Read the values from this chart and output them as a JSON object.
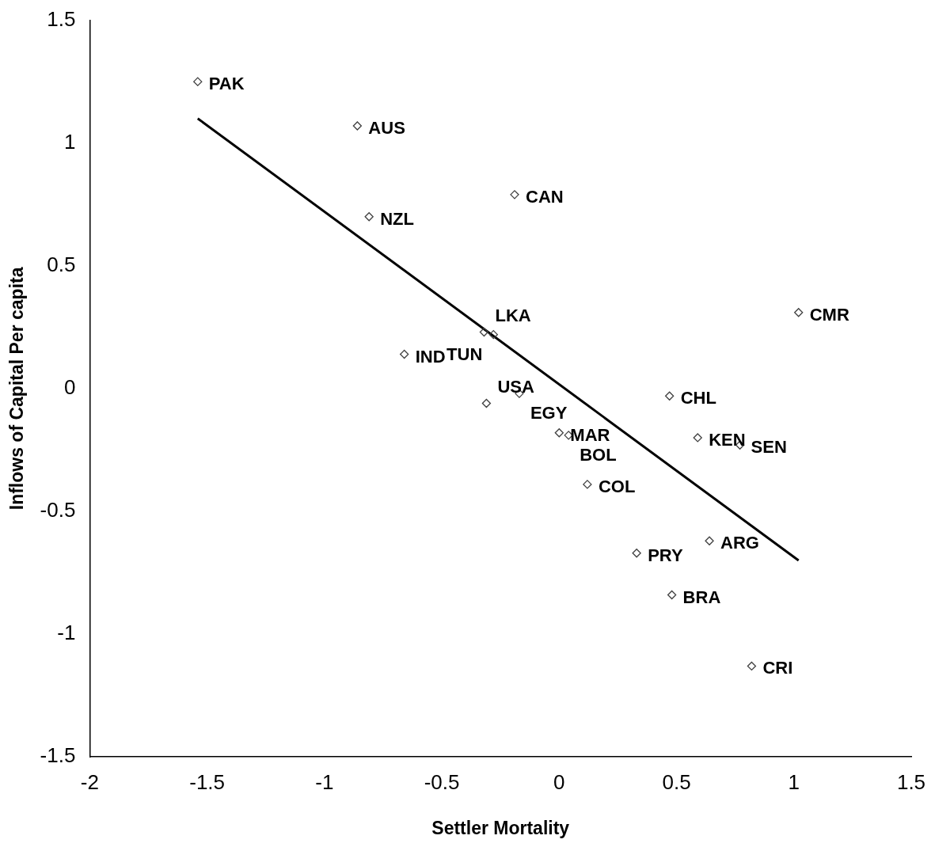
{
  "chart_data": {
    "type": "scatter",
    "xlabel": "Settler Mortality",
    "ylabel": "Inflows of Capital Per capita",
    "xlim": [
      -2,
      1.5
    ],
    "xticks": [
      -2,
      -1.5,
      -1,
      -0.5,
      0,
      0.5,
      1,
      1.5
    ],
    "ylim": [
      -1.5,
      1.5
    ],
    "yticks": [
      -1.5,
      -1,
      -0.5,
      0,
      0.5,
      1,
      1.5
    ],
    "grid": false,
    "legend": false,
    "marker": "diamond",
    "series": [
      {
        "type": "scatter",
        "color": "#404040",
        "x": [
          -1.54,
          -0.86,
          -0.19,
          -0.81,
          -0.32,
          -0.28,
          -0.66,
          -0.17,
          -0.31,
          0.0,
          0.04,
          0.12,
          1.02,
          0.47,
          0.59,
          0.77,
          0.64,
          0.33,
          0.48,
          0.82
        ],
        "values": [
          1.25,
          1.07,
          0.79,
          0.7,
          0.23,
          0.22,
          0.14,
          -0.02,
          -0.06,
          -0.18,
          -0.19,
          -0.39,
          0.31,
          -0.03,
          -0.2,
          -0.23,
          -0.62,
          -0.67,
          -0.84,
          -1.13
        ]
      },
      {
        "type": "line",
        "color": "#000000",
        "line_style": "solid",
        "marker": "none",
        "x": [
          -1.54,
          1.02
        ],
        "values": [
          1.1,
          -0.7
        ]
      }
    ],
    "annotations": [
      {
        "text": "PAK",
        "x": -1.54,
        "y": 1.25
      },
      {
        "text": "AUS",
        "x": -0.86,
        "y": 1.07
      },
      {
        "text": "CAN",
        "x": -0.19,
        "y": 0.79
      },
      {
        "text": "NZL",
        "x": -0.81,
        "y": 0.7
      },
      {
        "text": "LKA",
        "x": -0.32,
        "y": 0.23
      },
      {
        "text": "TUN",
        "x": -0.28,
        "y": 0.22
      },
      {
        "text": "IND",
        "x": -0.66,
        "y": 0.14
      },
      {
        "text": "EGY",
        "x": -0.17,
        "y": -0.02
      },
      {
        "text": "USA",
        "x": -0.31,
        "y": -0.06
      },
      {
        "text": "MAR",
        "x": 0.0,
        "y": -0.18
      },
      {
        "text": "BOL",
        "x": 0.04,
        "y": -0.19
      },
      {
        "text": "COL",
        "x": 0.12,
        "y": -0.39
      },
      {
        "text": "CMR",
        "x": 1.02,
        "y": 0.31
      },
      {
        "text": "CHL",
        "x": 0.47,
        "y": -0.03
      },
      {
        "text": "KEN",
        "x": 0.59,
        "y": -0.2
      },
      {
        "text": "SEN",
        "x": 0.77,
        "y": -0.23
      },
      {
        "text": "ARG",
        "x": 0.64,
        "y": -0.62
      },
      {
        "text": "PRY",
        "x": 0.33,
        "y": -0.67
      },
      {
        "text": "BRA",
        "x": 0.48,
        "y": -0.84
      },
      {
        "text": "CRI",
        "x": 0.82,
        "y": -1.13
      }
    ]
  }
}
